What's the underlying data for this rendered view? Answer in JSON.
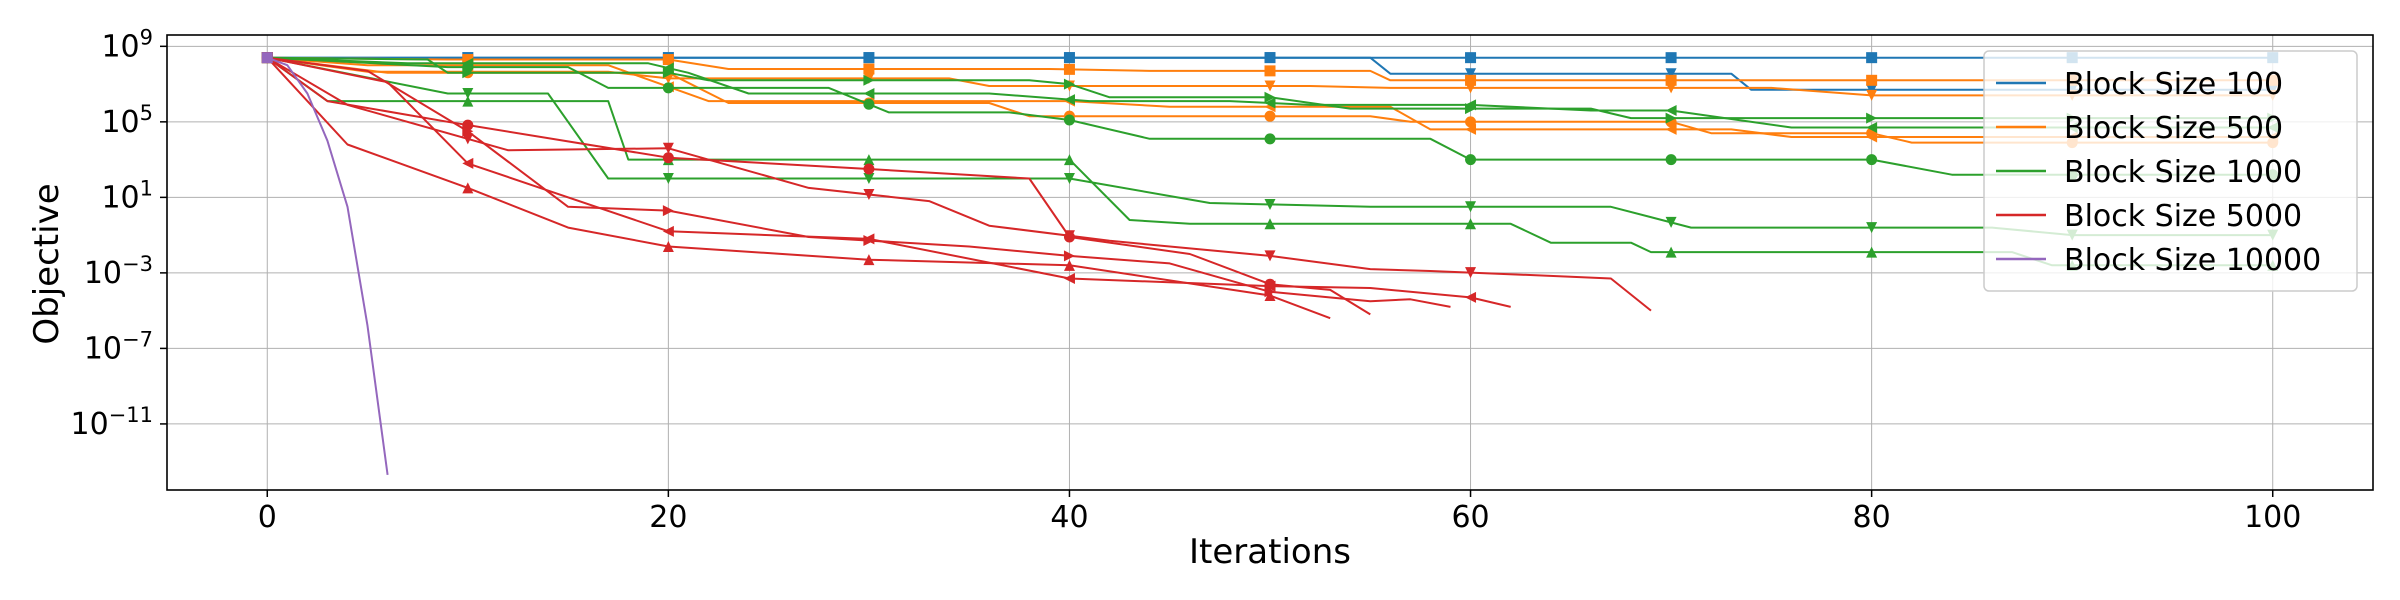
{
  "chart_data": {
    "type": "line",
    "title": "",
    "xlabel": "Iterations",
    "ylabel": "Objective",
    "x_scale": "linear",
    "y_scale": "log",
    "xlim": [
      -5,
      105
    ],
    "ylim_log10": [
      -14.5,
      9.6
    ],
    "x_ticks": [
      0,
      20,
      40,
      60,
      80,
      100
    ],
    "y_ticks": [
      {
        "exp": 9,
        "label_base": "10",
        "label_exp": "9"
      },
      {
        "exp": 5,
        "label_base": "10",
        "label_exp": "5"
      },
      {
        "exp": 1,
        "label_base": "10",
        "label_exp": "1"
      },
      {
        "exp": -3,
        "label_base": "10",
        "label_exp": "−3"
      },
      {
        "exp": -7,
        "label_base": "10",
        "label_exp": "−7"
      },
      {
        "exp": -11,
        "label_base": "10",
        "label_exp": "−11"
      }
    ],
    "grid": true,
    "legend_position": "top-right",
    "series_groups": [
      {
        "name": "Block Size 100",
        "color": "#1f77b4",
        "runs": [
          {
            "marker": "square",
            "points": [
              [
                0,
                8.4
              ],
              [
                100,
                8.4
              ]
            ]
          },
          {
            "marker": "triangle-down",
            "points": [
              [
                0,
                8.4
              ],
              [
                55,
                8.4
              ],
              [
                56,
                7.55
              ],
              [
                73,
                7.55
              ],
              [
                74,
                6.7
              ],
              [
                100,
                6.7
              ]
            ]
          }
        ]
      },
      {
        "name": "Block Size 500",
        "color": "#ff7f0e",
        "runs": [
          {
            "marker": "square",
            "points": [
              [
                0,
                8.4
              ],
              [
                9,
                8.3
              ],
              [
                20,
                8.3
              ],
              [
                23,
                7.8
              ],
              [
                39,
                7.8
              ],
              [
                44,
                7.7
              ],
              [
                55,
                7.7
              ],
              [
                56,
                7.2
              ],
              [
                100,
                7.2
              ]
            ]
          },
          {
            "marker": "triangle-down",
            "points": [
              [
                0,
                8.4
              ],
              [
                5,
                7.65
              ],
              [
                17,
                7.65
              ],
              [
                20,
                7.3
              ],
              [
                34,
                7.3
              ],
              [
                36,
                6.9
              ],
              [
                52,
                6.9
              ],
              [
                56,
                6.8
              ],
              [
                75,
                6.8
              ],
              [
                80,
                6.4
              ],
              [
                100,
                6.4
              ]
            ]
          },
          {
            "marker": "triangle-left",
            "points": [
              [
                0,
                8.4
              ],
              [
                5,
                8.0
              ],
              [
                17,
                8.0
              ],
              [
                22,
                6.1
              ],
              [
                40,
                6.1
              ],
              [
                45,
                5.8
              ],
              [
                56,
                5.8
              ],
              [
                58,
                4.6
              ],
              [
                64,
                4.6
              ],
              [
                73,
                4.6
              ],
              [
                76,
                4.2
              ],
              [
                100,
                4.2
              ]
            ]
          },
          {
            "marker": "circle",
            "points": [
              [
                0,
                8.4
              ],
              [
                6,
                7.6
              ],
              [
                20,
                7.6
              ],
              [
                23,
                6.0
              ],
              [
                36,
                6.0
              ],
              [
                38,
                5.3
              ],
              [
                46,
                5.3
              ],
              [
                55,
                5.3
              ],
              [
                57,
                5.0
              ],
              [
                70,
                5.0
              ],
              [
                72,
                4.4
              ],
              [
                80,
                4.4
              ],
              [
                82,
                3.9
              ],
              [
                100,
                3.9
              ]
            ]
          }
        ]
      },
      {
        "name": "Block Size 1000",
        "color": "#2ca02c",
        "runs": [
          {
            "marker": "triangle-right",
            "points": [
              [
                0,
                8.4
              ],
              [
                8,
                8.3
              ],
              [
                9,
                7.6
              ],
              [
                20,
                7.6
              ],
              [
                22,
                7.2
              ],
              [
                38,
                7.2
              ],
              [
                40,
                7.0
              ],
              [
                42,
                6.3
              ],
              [
                50,
                6.3
              ],
              [
                54,
                5.7
              ],
              [
                66,
                5.7
              ],
              [
                68,
                5.2
              ],
              [
                100,
                5.2
              ]
            ]
          },
          {
            "marker": "triangle-left",
            "points": [
              [
                0,
                8.4
              ],
              [
                7,
                8.1
              ],
              [
                19,
                8.1
              ],
              [
                21,
                7.6
              ],
              [
                24,
                6.5
              ],
              [
                36,
                6.5
              ],
              [
                41,
                6.1
              ],
              [
                48,
                6.1
              ],
              [
                52,
                5.9
              ],
              [
                60,
                5.9
              ],
              [
                66,
                5.6
              ],
              [
                70,
                5.6
              ],
              [
                76,
                4.7
              ],
              [
                100,
                4.7
              ]
            ]
          },
          {
            "marker": "circle",
            "points": [
              [
                0,
                8.4
              ],
              [
                9,
                7.9
              ],
              [
                15,
                7.9
              ],
              [
                17,
                6.8
              ],
              [
                28,
                6.8
              ],
              [
                31,
                5.5
              ],
              [
                37,
                5.5
              ],
              [
                40,
                5.1
              ],
              [
                44,
                4.1
              ],
              [
                58,
                4.1
              ],
              [
                60,
                3.0
              ],
              [
                80,
                3.0
              ],
              [
                84,
                2.2
              ],
              [
                100,
                2.2
              ]
            ]
          },
          {
            "marker": "triangle-up",
            "points": [
              [
                0,
                8.4
              ],
              [
                3,
                6.1
              ],
              [
                17,
                6.1
              ],
              [
                18,
                3.0
              ],
              [
                40,
                3.0
              ],
              [
                43,
                -0.2
              ],
              [
                46,
                -0.4
              ],
              [
                62,
                -0.4
              ],
              [
                64,
                -1.4
              ],
              [
                68,
                -1.4
              ],
              [
                69,
                -1.9
              ],
              [
                87,
                -1.9
              ],
              [
                89,
                -2.6
              ],
              [
                100,
                -2.6
              ]
            ]
          },
          {
            "marker": "triangle-down",
            "points": [
              [
                0,
                8.4
              ],
              [
                9,
                6.5
              ],
              [
                14,
                6.5
              ],
              [
                17,
                2.0
              ],
              [
                23,
                2.0
              ],
              [
                36,
                2.0
              ],
              [
                40,
                2.0
              ],
              [
                47,
                0.7
              ],
              [
                55,
                0.5
              ],
              [
                67,
                0.5
              ],
              [
                71,
                -0.6
              ],
              [
                86,
                -0.6
              ],
              [
                90,
                -1.0
              ],
              [
                100,
                -1.0
              ]
            ]
          }
        ]
      },
      {
        "name": "Block Size 5000",
        "color": "#d62728",
        "runs": [
          {
            "marker": "circle",
            "points": [
              [
                0,
                8.4
              ],
              [
                3,
                6.1
              ],
              [
                9,
                5.0
              ],
              [
                20,
                3.1
              ],
              [
                30,
                2.5
              ],
              [
                38,
                2.0
              ],
              [
                40,
                -1.1
              ],
              [
                46,
                -2.0
              ],
              [
                50,
                -3.6
              ],
              [
                51,
                -3.7
              ],
              [
                53,
                -3.9
              ],
              [
                55,
                -5.2
              ]
            ]
          },
          {
            "marker": "triangle-down",
            "points": [
              [
                0,
                8.4
              ],
              [
                4,
                5.9
              ],
              [
                12,
                3.5
              ],
              [
                20,
                3.6
              ],
              [
                27,
                1.5
              ],
              [
                33,
                0.8
              ],
              [
                36,
                -0.5
              ],
              [
                42,
                -1.3
              ],
              [
                50,
                -2.1
              ],
              [
                55,
                -2.8
              ],
              [
                58,
                -2.9
              ],
              [
                65,
                -3.2
              ],
              [
                67,
                -3.3
              ],
              [
                69,
                -5.0
              ]
            ]
          },
          {
            "marker": "triangle-right",
            "points": [
              [
                0,
                8.4
              ],
              [
                5,
                7.7
              ],
              [
                10,
                4.5
              ],
              [
                15,
                0.5
              ],
              [
                20,
                0.3
              ],
              [
                27,
                -1.1
              ],
              [
                35,
                -1.6
              ],
              [
                40,
                -2.1
              ],
              [
                45,
                -2.5
              ],
              [
                50,
                -4.0
              ],
              [
                55,
                -4.5
              ],
              [
                57,
                -4.4
              ],
              [
                59,
                -4.8
              ]
            ]
          },
          {
            "marker": "triangle-left",
            "points": [
              [
                0,
                8.4
              ],
              [
                6,
                7.1
              ],
              [
                10,
                2.8
              ],
              [
                20,
                -0.8
              ],
              [
                30,
                -1.2
              ],
              [
                40,
                -3.3
              ],
              [
                50,
                -3.7
              ],
              [
                55,
                -3.8
              ],
              [
                60,
                -4.3
              ],
              [
                62,
                -4.8
              ]
            ]
          },
          {
            "marker": "triangle-up",
            "points": [
              [
                0,
                8.4
              ],
              [
                4,
                3.8
              ],
              [
                10,
                1.5
              ],
              [
                15,
                -0.6
              ],
              [
                20,
                -1.6
              ],
              [
                30,
                -2.3
              ],
              [
                40,
                -2.6
              ],
              [
                50,
                -4.2
              ],
              [
                53,
                -5.4
              ]
            ]
          }
        ]
      },
      {
        "name": "Block Size 10000",
        "color": "#9467bd",
        "runs": [
          {
            "marker": "square",
            "points": [
              [
                0,
                8.4
              ],
              [
                1,
                8.0
              ],
              [
                2,
                6.5
              ],
              [
                3,
                4.0
              ],
              [
                4,
                0.5
              ],
              [
                5,
                -5.8
              ],
              [
                6,
                -13.7
              ]
            ]
          }
        ]
      }
    ]
  }
}
